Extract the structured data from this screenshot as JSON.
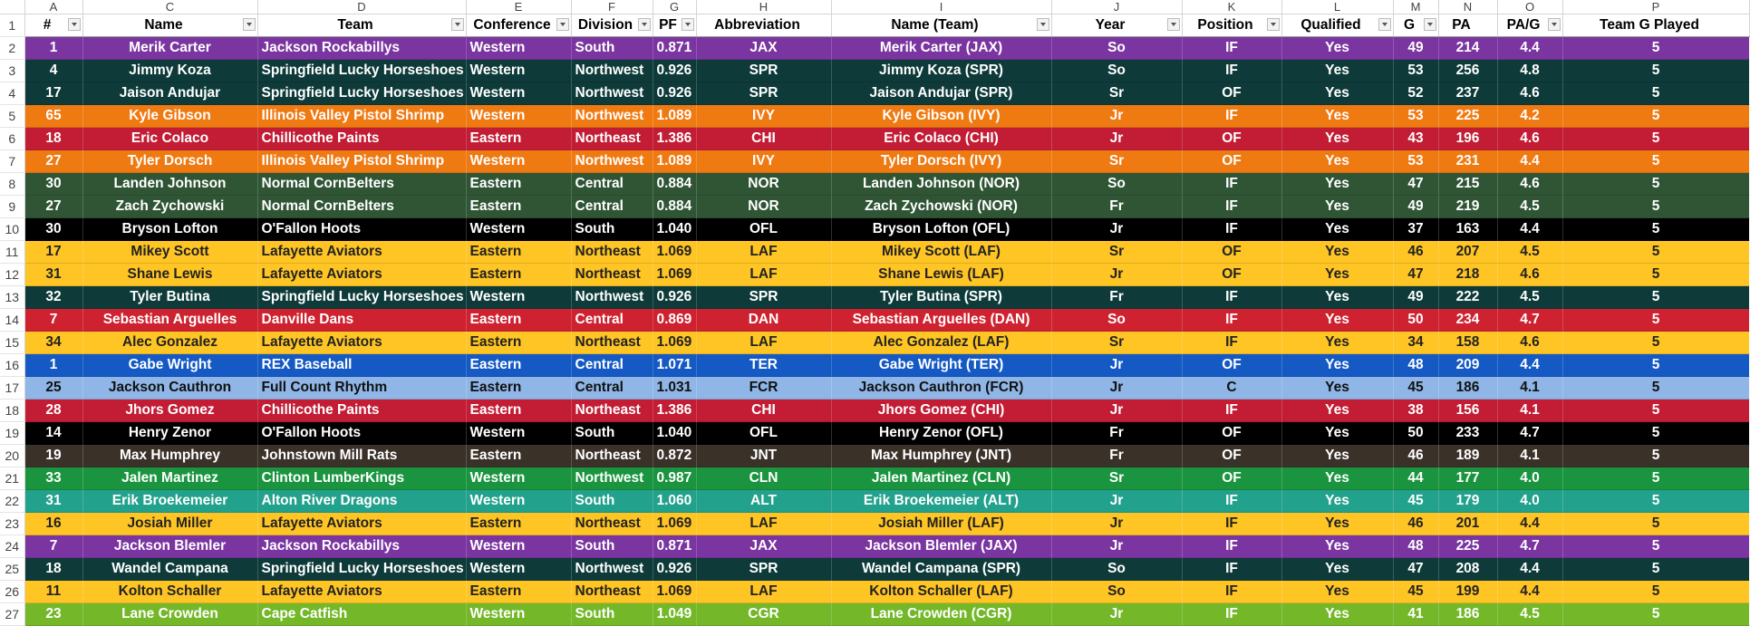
{
  "col_letters": [
    "A",
    "C",
    "D",
    "E",
    "F",
    "G",
    "H",
    "I",
    "J",
    "K",
    "L",
    "M",
    "N",
    "O",
    "P"
  ],
  "headers": [
    "#",
    "Name",
    "Team",
    "Conference",
    "Division",
    "PF",
    "Abbreviation",
    "Name (Team)",
    "Year",
    "Position",
    "Qualified",
    "G",
    "PA",
    "PA/G",
    "Team G Played"
  ],
  "filter_buttons": [
    true,
    true,
    true,
    true,
    true,
    true,
    false,
    true,
    true,
    true,
    true,
    true,
    false,
    true,
    false
  ],
  "team_colors": {
    "JAX": {
      "bg": "#7a35a0",
      "fg": "#ffffff"
    },
    "SPR": {
      "bg": "#0e3b3a",
      "fg": "#ffffff"
    },
    "IVY": {
      "bg": "#f07a12",
      "fg": "#ffffff"
    },
    "CHI": {
      "bg": "#c21d35",
      "fg": "#ffffff"
    },
    "NOR": {
      "bg": "#2f5535",
      "fg": "#ffffff"
    },
    "OFL": {
      "bg": "#000000",
      "fg": "#ffffff"
    },
    "LAF": {
      "bg": "#ffc524",
      "fg": "#222222"
    },
    "DAN": {
      "bg": "#cf2230",
      "fg": "#ffffff"
    },
    "TER": {
      "bg": "#1559c4",
      "fg": "#ffffff"
    },
    "FCR": {
      "bg": "#8fb6e6",
      "fg": "#111111"
    },
    "JNT": {
      "bg": "#3a3129",
      "fg": "#ffffff"
    },
    "CLN": {
      "bg": "#1b9440",
      "fg": "#ffffff"
    },
    "ALT": {
      "bg": "#22a18c",
      "fg": "#ffffff"
    },
    "CGR": {
      "bg": "#74b82a",
      "fg": "#ffffff"
    }
  },
  "rows": [
    {
      "row": "2",
      "num": "1",
      "name": "Merik Carter",
      "team": "Jackson Rockabillys",
      "conf": "Western",
      "div": "South",
      "pf": "0.871",
      "abbr": "JAX",
      "nt": "Merik Carter (JAX)",
      "year": "So",
      "pos": "IF",
      "qual": "Yes",
      "g": "49",
      "pa": "214",
      "pag": "4.4",
      "tgp": "5"
    },
    {
      "row": "3",
      "num": "4",
      "name": "Jimmy Koza",
      "team": "Springfield Lucky Horseshoes",
      "conf": "Western",
      "div": "Northwest",
      "pf": "0.926",
      "abbr": "SPR",
      "nt": "Jimmy Koza (SPR)",
      "year": "So",
      "pos": "IF",
      "qual": "Yes",
      "g": "53",
      "pa": "256",
      "pag": "4.8",
      "tgp": "5"
    },
    {
      "row": "4",
      "num": "17",
      "name": "Jaison Andujar",
      "team": "Springfield Lucky Horseshoes",
      "conf": "Western",
      "div": "Northwest",
      "pf": "0.926",
      "abbr": "SPR",
      "nt": "Jaison Andujar (SPR)",
      "year": "Sr",
      "pos": "OF",
      "qual": "Yes",
      "g": "52",
      "pa": "237",
      "pag": "4.6",
      "tgp": "5"
    },
    {
      "row": "5",
      "num": "65",
      "name": "Kyle Gibson",
      "team": "Illinois Valley Pistol Shrimp",
      "conf": "Western",
      "div": "Northwest",
      "pf": "1.089",
      "abbr": "IVY",
      "nt": "Kyle Gibson (IVY)",
      "year": "Jr",
      "pos": "IF",
      "qual": "Yes",
      "g": "53",
      "pa": "225",
      "pag": "4.2",
      "tgp": "5"
    },
    {
      "row": "6",
      "num": "18",
      "name": "Eric Colaco",
      "team": "Chillicothe Paints",
      "conf": "Eastern",
      "div": "Northeast",
      "pf": "1.386",
      "abbr": "CHI",
      "nt": "Eric Colaco (CHI)",
      "year": "Jr",
      "pos": "OF",
      "qual": "Yes",
      "g": "43",
      "pa": "196",
      "pag": "4.6",
      "tgp": "5"
    },
    {
      "row": "7",
      "num": "27",
      "name": "Tyler Dorsch",
      "team": "Illinois Valley Pistol Shrimp",
      "conf": "Western",
      "div": "Northwest",
      "pf": "1.089",
      "abbr": "IVY",
      "nt": "Tyler Dorsch (IVY)",
      "year": "Sr",
      "pos": "OF",
      "qual": "Yes",
      "g": "53",
      "pa": "231",
      "pag": "4.4",
      "tgp": "5"
    },
    {
      "row": "8",
      "num": "30",
      "name": "Landen Johnson",
      "team": "Normal CornBelters",
      "conf": "Eastern",
      "div": "Central",
      "pf": "0.884",
      "abbr": "NOR",
      "nt": "Landen Johnson (NOR)",
      "year": "So",
      "pos": "IF",
      "qual": "Yes",
      "g": "47",
      "pa": "215",
      "pag": "4.6",
      "tgp": "5"
    },
    {
      "row": "9",
      "num": "27",
      "name": "Zach Zychowski",
      "team": "Normal CornBelters",
      "conf": "Eastern",
      "div": "Central",
      "pf": "0.884",
      "abbr": "NOR",
      "nt": "Zach Zychowski (NOR)",
      "year": "Fr",
      "pos": "IF",
      "qual": "Yes",
      "g": "49",
      "pa": "219",
      "pag": "4.5",
      "tgp": "5"
    },
    {
      "row": "10",
      "num": "30",
      "name": "Bryson Lofton",
      "team": "O'Fallon Hoots",
      "conf": "Western",
      "div": "South",
      "pf": "1.040",
      "abbr": "OFL",
      "nt": "Bryson Lofton (OFL)",
      "year": "Jr",
      "pos": "IF",
      "qual": "Yes",
      "g": "37",
      "pa": "163",
      "pag": "4.4",
      "tgp": "5"
    },
    {
      "row": "11",
      "num": "17",
      "name": "Mikey Scott",
      "team": "Lafayette Aviators",
      "conf": "Eastern",
      "div": "Northeast",
      "pf": "1.069",
      "abbr": "LAF",
      "nt": "Mikey Scott (LAF)",
      "year": "Sr",
      "pos": "OF",
      "qual": "Yes",
      "g": "46",
      "pa": "207",
      "pag": "4.5",
      "tgp": "5"
    },
    {
      "row": "12",
      "num": "31",
      "name": "Shane Lewis",
      "team": "Lafayette Aviators",
      "conf": "Eastern",
      "div": "Northeast",
      "pf": "1.069",
      "abbr": "LAF",
      "nt": "Shane Lewis (LAF)",
      "year": "Jr",
      "pos": "OF",
      "qual": "Yes",
      "g": "47",
      "pa": "218",
      "pag": "4.6",
      "tgp": "5"
    },
    {
      "row": "13",
      "num": "32",
      "name": "Tyler Butina",
      "team": "Springfield Lucky Horseshoes",
      "conf": "Western",
      "div": "Northwest",
      "pf": "0.926",
      "abbr": "SPR",
      "nt": "Tyler Butina (SPR)",
      "year": "Fr",
      "pos": "IF",
      "qual": "Yes",
      "g": "49",
      "pa": "222",
      "pag": "4.5",
      "tgp": "5"
    },
    {
      "row": "14",
      "num": "7",
      "name": "Sebastian Arguelles",
      "team": "Danville Dans",
      "conf": "Eastern",
      "div": "Central",
      "pf": "0.869",
      "abbr": "DAN",
      "nt": "Sebastian Arguelles (DAN)",
      "year": "So",
      "pos": "IF",
      "qual": "Yes",
      "g": "50",
      "pa": "234",
      "pag": "4.7",
      "tgp": "5"
    },
    {
      "row": "15",
      "num": "34",
      "name": "Alec Gonzalez",
      "team": "Lafayette Aviators",
      "conf": "Eastern",
      "div": "Northeast",
      "pf": "1.069",
      "abbr": "LAF",
      "nt": "Alec Gonzalez (LAF)",
      "year": "Sr",
      "pos": "IF",
      "qual": "Yes",
      "g": "34",
      "pa": "158",
      "pag": "4.6",
      "tgp": "5"
    },
    {
      "row": "16",
      "num": "1",
      "name": "Gabe Wright",
      "team": "REX Baseball",
      "conf": "Eastern",
      "div": "Central",
      "pf": "1.071",
      "abbr": "TER",
      "nt": "Gabe Wright (TER)",
      "year": "Jr",
      "pos": "OF",
      "qual": "Yes",
      "g": "48",
      "pa": "209",
      "pag": "4.4",
      "tgp": "5"
    },
    {
      "row": "17",
      "num": "25",
      "name": "Jackson Cauthron",
      "team": "Full Count Rhythm",
      "conf": "Eastern",
      "div": "Central",
      "pf": "1.031",
      "abbr": "FCR",
      "nt": "Jackson Cauthron (FCR)",
      "year": "Jr",
      "pos": "C",
      "qual": "Yes",
      "g": "45",
      "pa": "186",
      "pag": "4.1",
      "tgp": "5"
    },
    {
      "row": "18",
      "num": "28",
      "name": "Jhors Gomez",
      "team": "Chillicothe Paints",
      "conf": "Eastern",
      "div": "Northeast",
      "pf": "1.386",
      "abbr": "CHI",
      "nt": "Jhors Gomez (CHI)",
      "year": "Jr",
      "pos": "IF",
      "qual": "Yes",
      "g": "38",
      "pa": "156",
      "pag": "4.1",
      "tgp": "5"
    },
    {
      "row": "19",
      "num": "14",
      "name": "Henry Zenor",
      "team": "O'Fallon Hoots",
      "conf": "Western",
      "div": "South",
      "pf": "1.040",
      "abbr": "OFL",
      "nt": "Henry Zenor (OFL)",
      "year": "Fr",
      "pos": "OF",
      "qual": "Yes",
      "g": "50",
      "pa": "233",
      "pag": "4.7",
      "tgp": "5"
    },
    {
      "row": "20",
      "num": "19",
      "name": "Max Humphrey",
      "team": "Johnstown Mill Rats",
      "conf": "Eastern",
      "div": "Northeast",
      "pf": "0.872",
      "abbr": "JNT",
      "nt": "Max Humphrey (JNT)",
      "year": "Fr",
      "pos": "OF",
      "qual": "Yes",
      "g": "46",
      "pa": "189",
      "pag": "4.1",
      "tgp": "5"
    },
    {
      "row": "21",
      "num": "33",
      "name": "Jalen Martinez",
      "team": "Clinton LumberKings",
      "conf": "Western",
      "div": "Northwest",
      "pf": "0.987",
      "abbr": "CLN",
      "nt": "Jalen Martinez (CLN)",
      "year": "Sr",
      "pos": "OF",
      "qual": "Yes",
      "g": "44",
      "pa": "177",
      "pag": "4.0",
      "tgp": "5"
    },
    {
      "row": "22",
      "num": "31",
      "name": "Erik Broekemeier",
      "team": "Alton River Dragons",
      "conf": "Western",
      "div": "South",
      "pf": "1.060",
      "abbr": "ALT",
      "nt": "Erik Broekemeier (ALT)",
      "year": "Jr",
      "pos": "IF",
      "qual": "Yes",
      "g": "45",
      "pa": "179",
      "pag": "4.0",
      "tgp": "5"
    },
    {
      "row": "23",
      "num": "16",
      "name": "Josiah Miller",
      "team": "Lafayette Aviators",
      "conf": "Eastern",
      "div": "Northeast",
      "pf": "1.069",
      "abbr": "LAF",
      "nt": "Josiah Miller (LAF)",
      "year": "Jr",
      "pos": "IF",
      "qual": "Yes",
      "g": "46",
      "pa": "201",
      "pag": "4.4",
      "tgp": "5"
    },
    {
      "row": "24",
      "num": "7",
      "name": "Jackson Blemler",
      "team": "Jackson Rockabillys",
      "conf": "Western",
      "div": "South",
      "pf": "0.871",
      "abbr": "JAX",
      "nt": "Jackson Blemler (JAX)",
      "year": "Jr",
      "pos": "IF",
      "qual": "Yes",
      "g": "48",
      "pa": "225",
      "pag": "4.7",
      "tgp": "5"
    },
    {
      "row": "25",
      "num": "18",
      "name": "Wandel Campana",
      "team": "Springfield Lucky Horseshoes",
      "conf": "Western",
      "div": "Northwest",
      "pf": "0.926",
      "abbr": "SPR",
      "nt": "Wandel Campana (SPR)",
      "year": "So",
      "pos": "IF",
      "qual": "Yes",
      "g": "47",
      "pa": "208",
      "pag": "4.4",
      "tgp": "5"
    },
    {
      "row": "26",
      "num": "11",
      "name": "Kolton Schaller",
      "team": "Lafayette Aviators",
      "conf": "Eastern",
      "div": "Northeast",
      "pf": "1.069",
      "abbr": "LAF",
      "nt": "Kolton Schaller (LAF)",
      "year": "So",
      "pos": "IF",
      "qual": "Yes",
      "g": "45",
      "pa": "199",
      "pag": "4.4",
      "tgp": "5"
    },
    {
      "row": "27",
      "num": "23",
      "name": "Lane Crowden",
      "team": "Cape Catfish",
      "conf": "Western",
      "div": "South",
      "pf": "1.049",
      "abbr": "CGR",
      "nt": "Lane Crowden (CGR)",
      "year": "Jr",
      "pos": "IF",
      "qual": "Yes",
      "g": "41",
      "pa": "186",
      "pag": "4.5",
      "tgp": "5"
    }
  ]
}
